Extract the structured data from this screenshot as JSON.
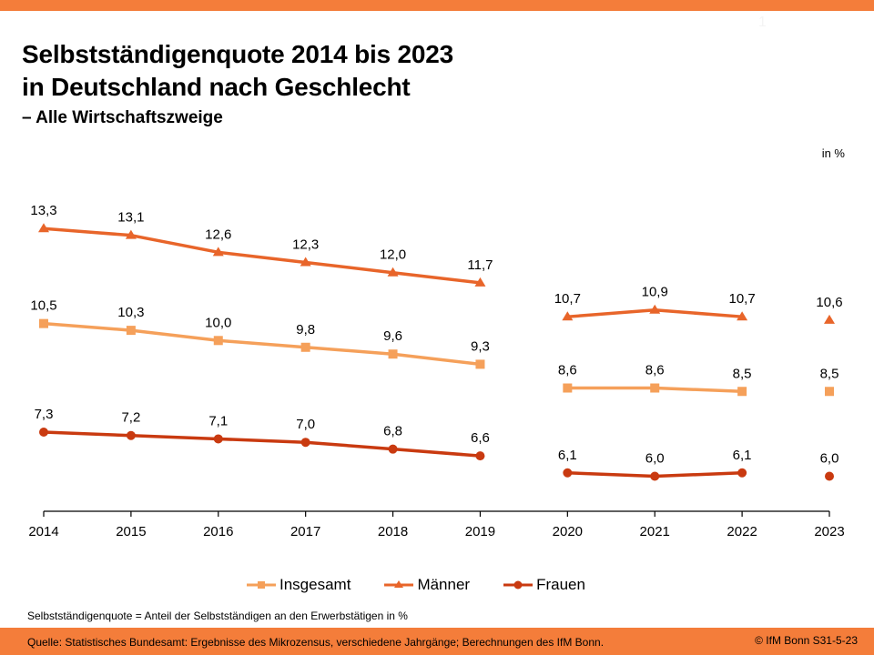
{
  "header": {
    "title_line1": "Selbstständigenquote 2014 bis 2023",
    "title_line2": "in Deutschland nach Geschlecht",
    "subtitle": "– Alle Wirtschaftszweige",
    "page_marker": "1"
  },
  "colors": {
    "brand": "#F47D3A",
    "insgesamt": "#F5A05A",
    "maenner": "#E8652A",
    "frauen": "#C93A10"
  },
  "chart_data": {
    "type": "line",
    "title": "Selbstständigenquote 2014 bis 2023 in Deutschland nach Geschlecht – Alle Wirtschaftszweige",
    "xlabel": "",
    "ylabel": "in %",
    "unit_label": "in %",
    "categories": [
      "2014",
      "2015",
      "2016",
      "2017",
      "2018",
      "2019",
      "2020",
      "2021",
      "2022",
      "2023"
    ],
    "line_segments_break_after": [
      "2019",
      "2022"
    ],
    "grid": false,
    "legend_position": "bottom",
    "series": [
      {
        "name": "Insgesamt",
        "marker": "square",
        "color": "#F5A05A",
        "values": [
          10.5,
          10.3,
          10.0,
          9.8,
          9.6,
          9.3,
          8.6,
          8.6,
          8.5,
          8.5
        ],
        "labels": [
          "10,5",
          "10,3",
          "10,0",
          "9,8",
          "9,6",
          "9,3",
          "8,6",
          "8,6",
          "8,5",
          "8,5"
        ]
      },
      {
        "name": "Männer",
        "marker": "triangle",
        "color": "#E8652A",
        "values": [
          13.3,
          13.1,
          12.6,
          12.3,
          12.0,
          11.7,
          10.7,
          10.9,
          10.7,
          10.6
        ],
        "labels": [
          "13,3",
          "13,1",
          "12,6",
          "12,3",
          "12,0",
          "11,7",
          "10,7",
          "10,9",
          "10,7",
          "10,6"
        ]
      },
      {
        "name": "Frauen",
        "marker": "circle",
        "color": "#C93A10",
        "values": [
          7.3,
          7.2,
          7.1,
          7.0,
          6.8,
          6.6,
          6.1,
          6.0,
          6.1,
          6.0
        ],
        "labels": [
          "7,3",
          "7,2",
          "7,1",
          "7,0",
          "6,8",
          "6,6",
          "6,1",
          "6,0",
          "6,1",
          "6,0"
        ]
      }
    ]
  },
  "legend": {
    "items": [
      {
        "label": "Insgesamt"
      },
      {
        "label": "Männer"
      },
      {
        "label": "Frauen"
      }
    ]
  },
  "footer": {
    "note": "Selbstständigenquote = Anteil der Selbstständigen an den Erwerbstätigen in %",
    "source": "Quelle: Statistisches Bundesamt: Ergebnisse des Mikrozensus, verschiedene Jahrgänge; Berechnungen des IfM Bonn.",
    "copyright": "© IfM Bonn  S31-5-23"
  }
}
